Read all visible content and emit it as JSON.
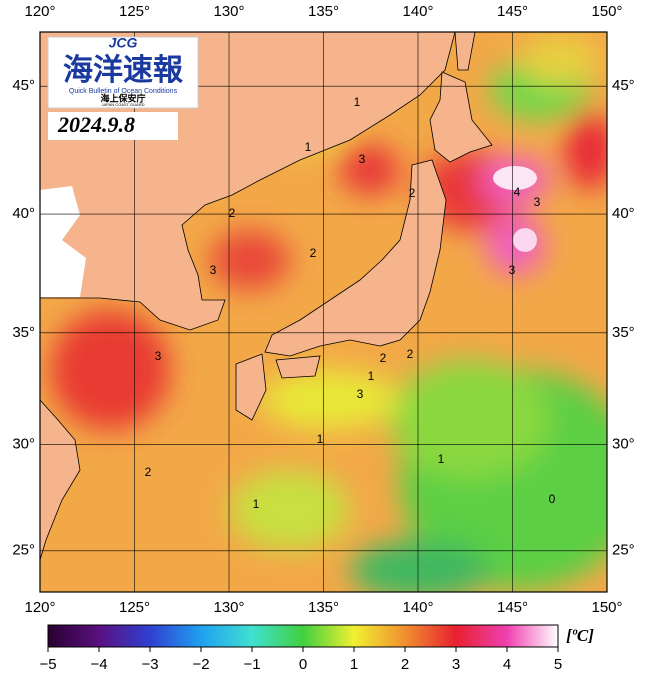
{
  "map": {
    "logo": {
      "mark": "JCG",
      "title": "海洋速報",
      "subtitle": "Quick Bulletin of Ocean Conditions",
      "agency": "海上保安庁",
      "agency_en": "JAPAN COAST GUARD"
    },
    "date": "2024.9.8",
    "xlim": [
      120,
      150
    ],
    "ylim": [
      23,
      47
    ],
    "xticks": [
      {
        "value": 120,
        "label": "120°"
      },
      {
        "value": 125,
        "label": "125°"
      },
      {
        "value": 130,
        "label": "130°"
      },
      {
        "value": 135,
        "label": "135°"
      },
      {
        "value": 140,
        "label": "140°"
      },
      {
        "value": 145,
        "label": "145°"
      },
      {
        "value": 150,
        "label": "150°"
      }
    ],
    "yticks": [
      {
        "value": 25,
        "label": "25°"
      },
      {
        "value": 30,
        "label": "30°"
      },
      {
        "value": 35,
        "label": "35°"
      },
      {
        "value": 40,
        "label": "40°"
      },
      {
        "value": 45,
        "label": "45°"
      }
    ],
    "contour_labels": [
      1,
      1,
      3,
      2,
      2,
      2,
      3,
      4,
      3,
      3,
      3,
      2,
      1,
      1,
      1,
      0,
      2,
      3,
      2,
      1
    ],
    "colorbar": {
      "range": [
        -5,
        5
      ],
      "unit": "[ºC]",
      "ticks": [
        {
          "value": -5,
          "label": "−5"
        },
        {
          "value": -4,
          "label": "−4"
        },
        {
          "value": -3,
          "label": "−3"
        },
        {
          "value": -2,
          "label": "−2"
        },
        {
          "value": -1,
          "label": "−1"
        },
        0,
        1,
        2,
        3,
        4,
        5
      ]
    }
  }
}
